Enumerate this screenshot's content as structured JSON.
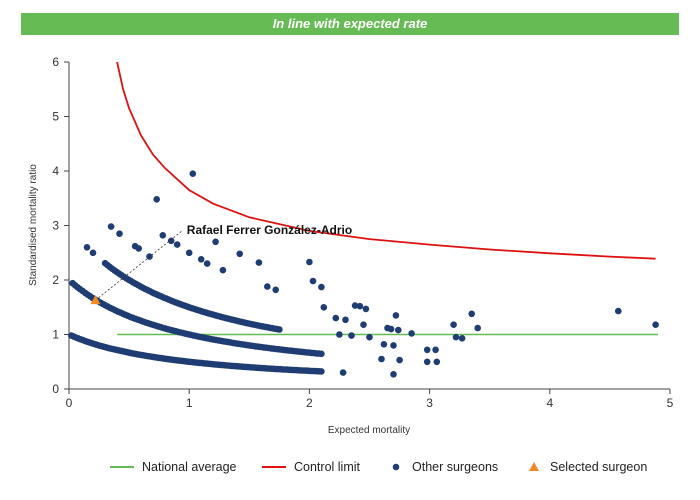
{
  "banner": {
    "text": "In line with expected rate"
  },
  "chart_data": {
    "type": "scatter",
    "xlabel": "Expected mortality",
    "ylabel": "Standardised mortality ratio",
    "xlim": [
      0,
      5
    ],
    "ylim": [
      0,
      6
    ],
    "xticks": [
      "0",
      "1",
      "2",
      "3",
      "4",
      "5"
    ],
    "yticks": [
      "0",
      "1",
      "2",
      "3",
      "4",
      "5",
      "6"
    ],
    "grid": false,
    "legend_position": "bottom",
    "colors": {
      "national": "#66bb55",
      "control": "#dd1111",
      "others": "#1f3d73",
      "selected": "#f08a24"
    },
    "national_average": {
      "name": "National average",
      "y": 1,
      "x_start": 0.4,
      "x_end": 4.9
    },
    "control_limit": {
      "name": "Control limit",
      "x": [
        0.4,
        0.45,
        0.5,
        0.6,
        0.7,
        0.8,
        1.0,
        1.2,
        1.5,
        2.0,
        2.5,
        3.0,
        3.5,
        4.0,
        4.5,
        4.88
      ],
      "y": [
        6.0,
        5.5,
        5.15,
        4.65,
        4.3,
        4.05,
        3.65,
        3.4,
        3.15,
        2.9,
        2.75,
        2.65,
        2.56,
        2.49,
        2.43,
        2.39
      ]
    },
    "other_surgeons": {
      "name": "Other surgeons",
      "curves": [
        {
          "k": 1,
          "x_from": 0.02,
          "x_to": 2.1,
          "count": 110
        },
        {
          "k": 2,
          "x_from": 0.03,
          "x_to": 2.1,
          "count": 100
        },
        {
          "k": 3,
          "x_from": 0.3,
          "x_to": 1.75,
          "count": 75
        }
      ],
      "points": [
        {
          "x": 0.15,
          "y": 2.6
        },
        {
          "x": 0.2,
          "y": 2.5
        },
        {
          "x": 0.35,
          "y": 2.98
        },
        {
          "x": 0.42,
          "y": 2.85
        },
        {
          "x": 0.55,
          "y": 2.62
        },
        {
          "x": 0.58,
          "y": 2.58
        },
        {
          "x": 0.67,
          "y": 2.43
        },
        {
          "x": 0.73,
          "y": 3.48
        },
        {
          "x": 0.78,
          "y": 2.82
        },
        {
          "x": 0.85,
          "y": 2.72
        },
        {
          "x": 0.9,
          "y": 2.65
        },
        {
          "x": 1.0,
          "y": 2.5
        },
        {
          "x": 1.03,
          "y": 3.95
        },
        {
          "x": 1.1,
          "y": 2.38
        },
        {
          "x": 1.15,
          "y": 2.3
        },
        {
          "x": 1.22,
          "y": 2.7
        },
        {
          "x": 1.28,
          "y": 2.18
        },
        {
          "x": 1.42,
          "y": 2.48
        },
        {
          "x": 1.58,
          "y": 2.32
        },
        {
          "x": 1.65,
          "y": 1.88
        },
        {
          "x": 1.72,
          "y": 1.82
        },
        {
          "x": 2.0,
          "y": 2.33
        },
        {
          "x": 2.03,
          "y": 1.98
        },
        {
          "x": 2.1,
          "y": 1.87
        },
        {
          "x": 2.12,
          "y": 1.5
        },
        {
          "x": 2.22,
          "y": 1.3
        },
        {
          "x": 2.3,
          "y": 1.27
        },
        {
          "x": 2.25,
          "y": 1.0
        },
        {
          "x": 2.35,
          "y": 0.98
        },
        {
          "x": 2.38,
          "y": 1.53
        },
        {
          "x": 2.42,
          "y": 1.52
        },
        {
          "x": 2.47,
          "y": 1.47
        },
        {
          "x": 2.45,
          "y": 1.18
        },
        {
          "x": 2.28,
          "y": 0.3
        },
        {
          "x": 2.5,
          "y": 0.95
        },
        {
          "x": 2.6,
          "y": 0.55
        },
        {
          "x": 2.62,
          "y": 0.82
        },
        {
          "x": 2.65,
          "y": 1.12
        },
        {
          "x": 2.68,
          "y": 1.1
        },
        {
          "x": 2.7,
          "y": 0.8
        },
        {
          "x": 2.72,
          "y": 1.35
        },
        {
          "x": 2.74,
          "y": 1.08
        },
        {
          "x": 2.75,
          "y": 0.53
        },
        {
          "x": 2.7,
          "y": 0.27
        },
        {
          "x": 2.85,
          "y": 1.02
        },
        {
          "x": 2.98,
          "y": 0.72
        },
        {
          "x": 3.05,
          "y": 0.72
        },
        {
          "x": 2.98,
          "y": 0.5
        },
        {
          "x": 3.06,
          "y": 0.5
        },
        {
          "x": 3.2,
          "y": 1.18
        },
        {
          "x": 3.22,
          "y": 0.95
        },
        {
          "x": 3.27,
          "y": 0.93
        },
        {
          "x": 3.35,
          "y": 1.38
        },
        {
          "x": 3.4,
          "y": 1.12
        },
        {
          "x": 4.57,
          "y": 1.43
        },
        {
          "x": 4.88,
          "y": 1.18
        }
      ]
    },
    "selected_surgeon": {
      "name": "Selected surgeon",
      "label": "Rafael Ferrer González-Adrio",
      "x": 0.22,
      "y": 1.63,
      "label_x": 0.98,
      "label_y": 2.95
    },
    "legend": [
      {
        "label": "National average",
        "kind": "line",
        "color_key": "national"
      },
      {
        "label": "Control limit",
        "kind": "line",
        "color_key": "control"
      },
      {
        "label": "Other surgeons",
        "kind": "dot",
        "color_key": "others"
      },
      {
        "label": "Selected surgeon",
        "kind": "triangle",
        "color_key": "selected"
      }
    ]
  }
}
